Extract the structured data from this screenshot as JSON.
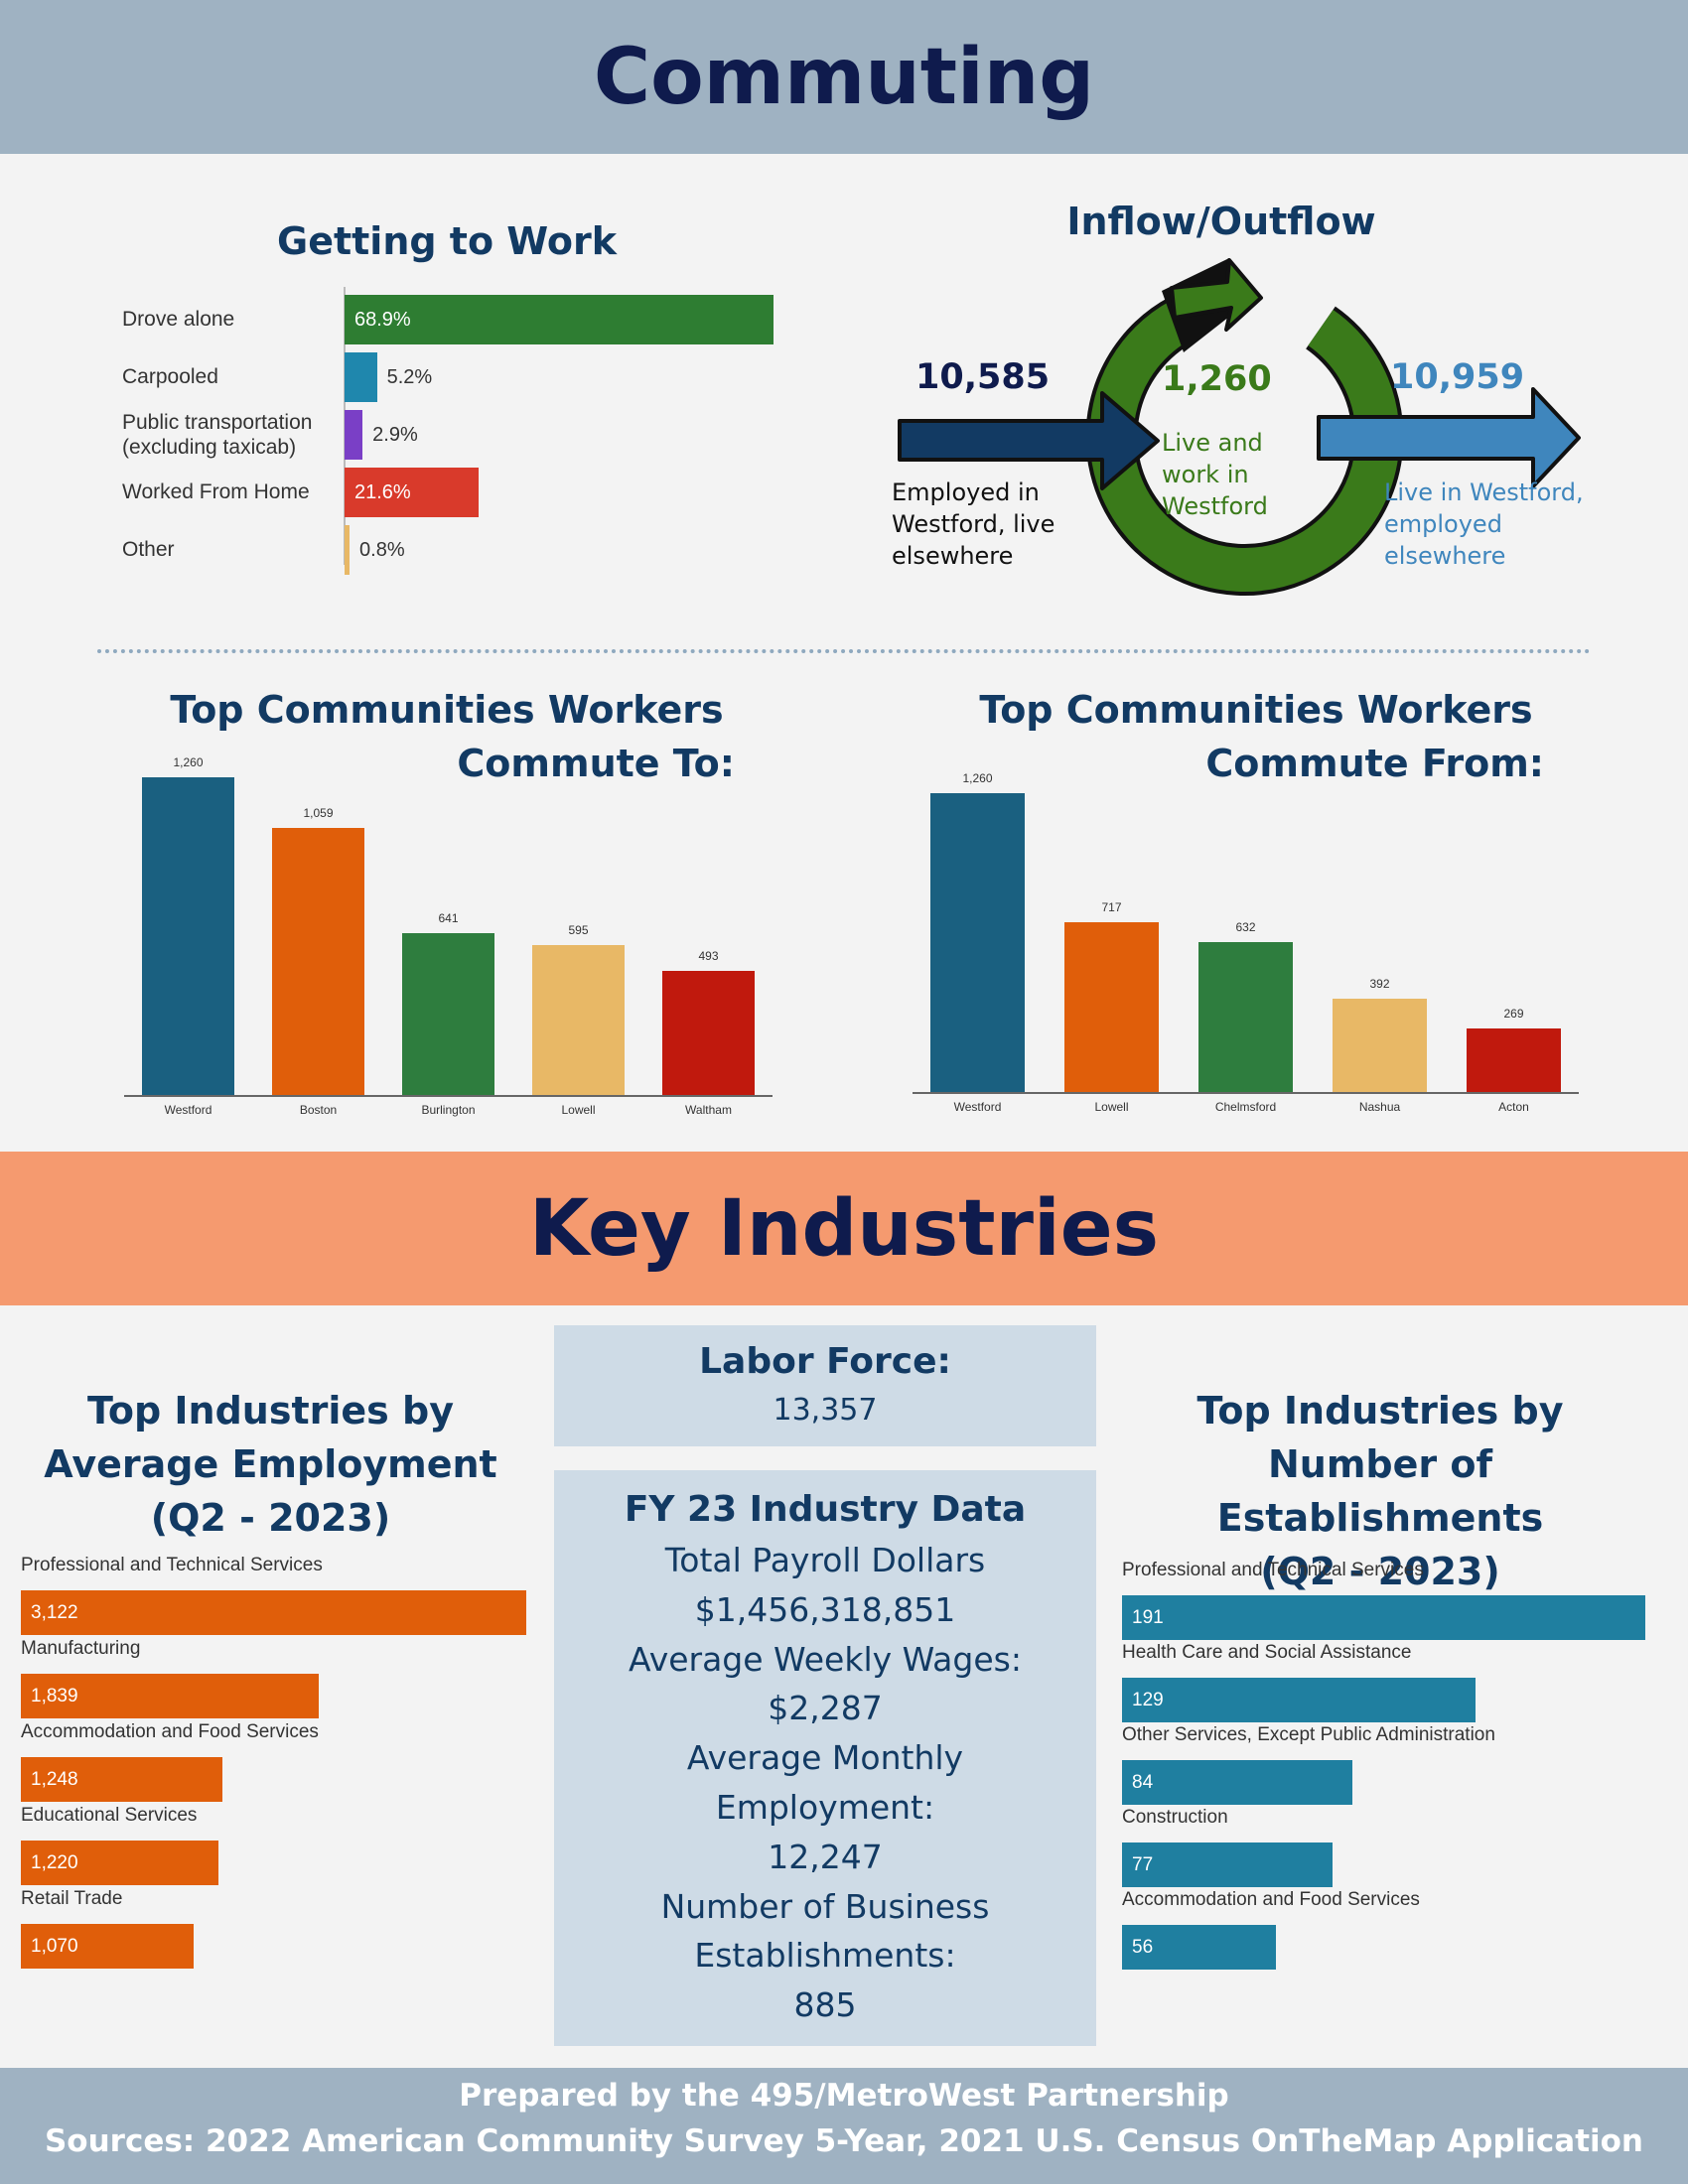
{
  "commuting": {
    "banner_title": "Commuting",
    "getting_to_work": {
      "title": "Getting to Work",
      "items": [
        {
          "label": "Drove alone",
          "value": 68.9,
          "display": "68.9%",
          "color": "#2e7d32"
        },
        {
          "label": "Carpooled",
          "value": 5.2,
          "display": "5.2%",
          "color": "#1f87ad"
        },
        {
          "label": "Public transportation (excluding taxicab)",
          "value": 2.9,
          "display": "2.9%",
          "color": "#7a3fc6"
        },
        {
          "label": "Worked From Home",
          "value": 21.6,
          "display": "21.6%",
          "color": "#d93a2b"
        },
        {
          "label": "Other",
          "value": 0.8,
          "display": "0.8%",
          "color": "#e8b866"
        }
      ]
    },
    "inflow_outflow": {
      "title": "Inflow/Outflow",
      "inflow_number": "10,585",
      "inflow_label": "Employed in Westford, live elsewhere",
      "inside_number": "1,260",
      "inside_label": "Live and work in Westford",
      "outflow_number": "10,959",
      "outflow_label": "Live in Westford, employed elsewhere",
      "colors": {
        "inflow": "#123a63",
        "inside": "#3a7a1a",
        "outflow": "#3f86bd"
      }
    },
    "commute_to": {
      "title_line1": "Top Communities Workers",
      "title_line2": "Commute To:"
    },
    "commute_from": {
      "title_line1": "Top Communities Workers",
      "title_line2": "Commute From:"
    }
  },
  "key_industries": {
    "banner_title": "Key Industries",
    "employment": {
      "title_line1": "Top Industries by",
      "title_line2": "Average Employment",
      "title_line3": "(Q2 - 2023)"
    },
    "establishments": {
      "title_line1": "Top Industries by",
      "title_line2": "Number of Establishments",
      "title_line3": "(Q2 - 2023)"
    },
    "labor_force": {
      "title": "Labor Force:",
      "value": "13,357"
    },
    "fy23": {
      "title": "FY 23 Industry Data",
      "lines": [
        "Total Payroll Dollars",
        "$1,456,318,851",
        "Average Weekly Wages:",
        "$2,287",
        "Average Monthly",
        "Employment:",
        "12,247",
        "Number of Business",
        "Establishments:",
        "885"
      ]
    }
  },
  "footer": {
    "line1": "Prepared by the 495/MetroWest Partnership",
    "line2": "Sources: 2022 American Community Survey 5-Year, 2021 U.S. Census OnTheMap Application"
  },
  "chart_data": [
    {
      "type": "bar",
      "orientation": "horizontal",
      "title": "Getting to Work",
      "categories": [
        "Drove alone",
        "Carpooled",
        "Public transportation (excluding taxicab)",
        "Worked From Home",
        "Other"
      ],
      "values": [
        68.9,
        5.2,
        2.9,
        21.6,
        0.8
      ],
      "unit": "%",
      "xlim": [
        0,
        68.9
      ]
    },
    {
      "type": "bar",
      "title": "Top Communities Workers Commute To:",
      "categories": [
        "Westford",
        "Boston",
        "Burlington",
        "Lowell",
        "Waltham"
      ],
      "values": [
        1260,
        1059,
        641,
        595,
        493
      ],
      "labels": [
        "1,260",
        "1,059",
        "641",
        "595",
        "493"
      ],
      "colors": [
        "#1a6080",
        "#e05e0a",
        "#2e7d3e",
        "#e8b866",
        "#c0190d"
      ],
      "ylim": [
        0,
        1260
      ]
    },
    {
      "type": "bar",
      "title": "Top Communities Workers Commute From:",
      "categories": [
        "Westford",
        "Lowell",
        "Chelmsford",
        "Nashua",
        "Acton"
      ],
      "values": [
        1260,
        717,
        632,
        392,
        269
      ],
      "labels": [
        "1,260",
        "717",
        "632",
        "392",
        "269"
      ],
      "colors": [
        "#1a6080",
        "#e05e0a",
        "#2e7d3e",
        "#e8b866",
        "#c0190d"
      ],
      "ylim": [
        0,
        1260
      ]
    },
    {
      "type": "bar",
      "orientation": "horizontal",
      "title": "Top Industries by Average Employment (Q2 - 2023)",
      "categories": [
        "Professional and Technical Services",
        "Manufacturing",
        "Accommodation and Food Services",
        "Educational Services",
        "Retail Trade"
      ],
      "values": [
        3122,
        1839,
        1248,
        1220,
        1070
      ],
      "labels": [
        "3,122",
        "1,839",
        "1,248",
        "1,220",
        "1,070"
      ],
      "color": "#e05e0a",
      "xlim": [
        0,
        3122
      ]
    },
    {
      "type": "bar",
      "orientation": "horizontal",
      "title": "Top Industries by Number of Establishments (Q2 - 2023)",
      "categories": [
        "Professional and Technical Services",
        "Health Care and Social Assistance",
        "Other Services, Except Public Administration",
        "Construction",
        "Accommodation and Food Services"
      ],
      "values": [
        191,
        129,
        84,
        77,
        56
      ],
      "labels": [
        "191",
        "129",
        "84",
        "77",
        "56"
      ],
      "color": "#1f7fa0",
      "xlim": [
        0,
        191
      ]
    }
  ]
}
